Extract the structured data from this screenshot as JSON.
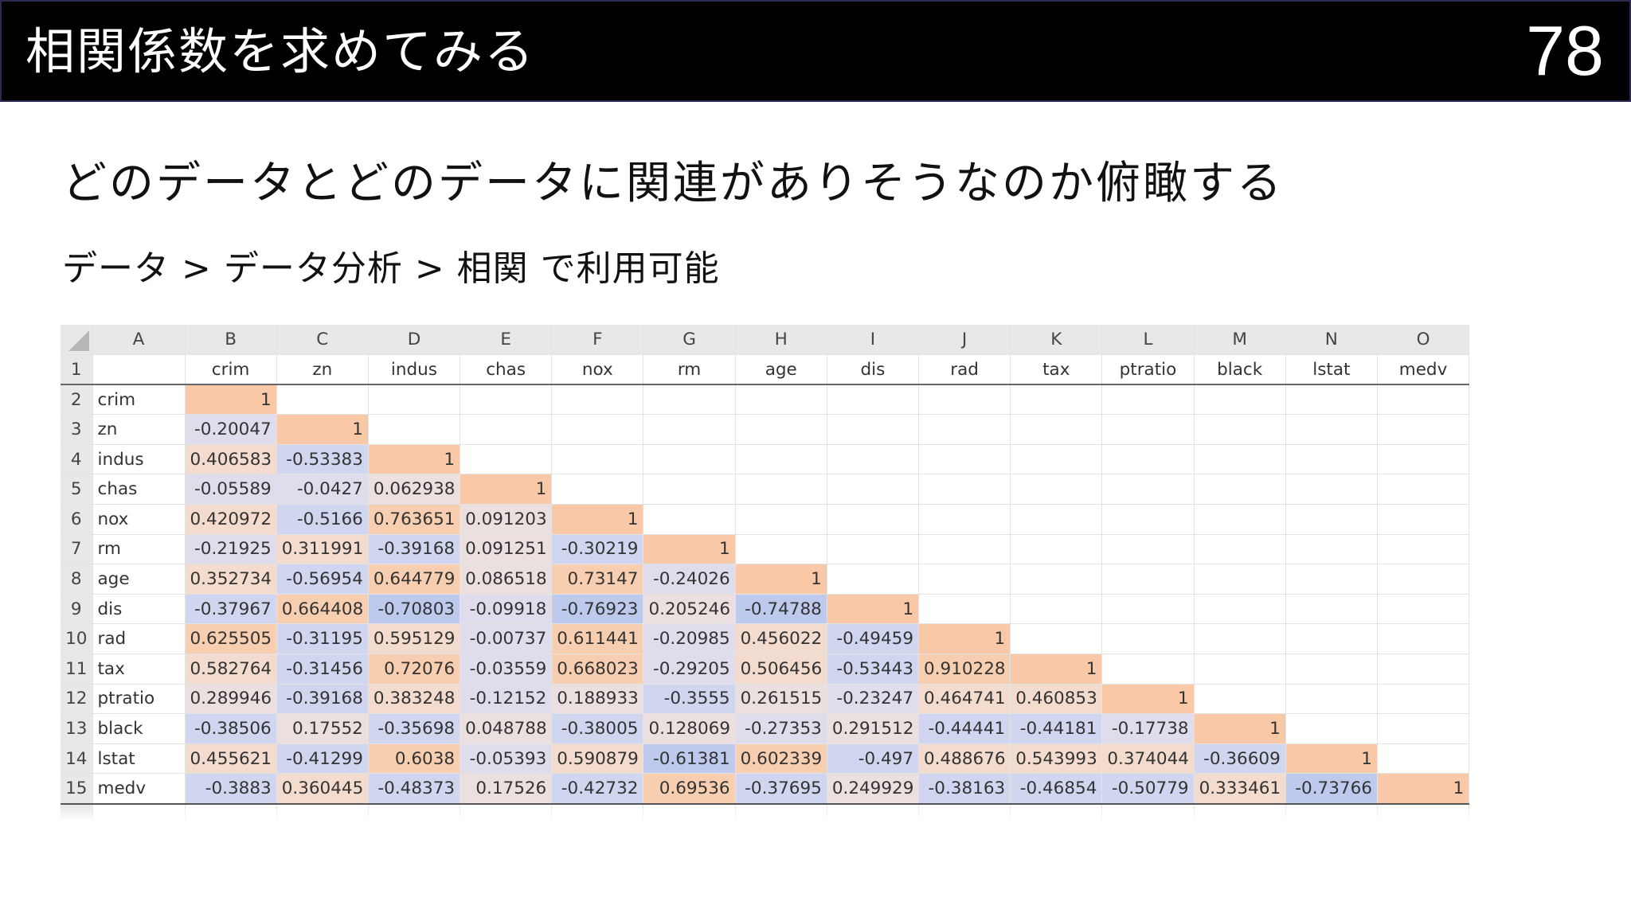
{
  "slide": {
    "title": "相関係数を求めてみる",
    "page_number": "78",
    "subtitle": "どのデータとどのデータに関連がありそうなのか俯瞰する",
    "menu_path": "データ > データ分析 > 相関 で利用可能"
  },
  "colors": {
    "title_bar": "#000000",
    "diagonal": "#f9c9a7",
    "strong_positive": "#f7cfb0",
    "positive": "#f3dccd",
    "weak_positive": "#ecdfe0",
    "weak_negative": "#dfdcec",
    "negative": "#d1d6f0",
    "strong_negative": "#bec9ee",
    "header_bg": "#e8e8e8"
  },
  "spreadsheet": {
    "columns": [
      "A",
      "B",
      "C",
      "D",
      "E",
      "F",
      "G",
      "H",
      "I",
      "J",
      "K",
      "L",
      "M",
      "N",
      "O"
    ],
    "variables": [
      "crim",
      "zn",
      "indus",
      "chas",
      "nox",
      "rm",
      "age",
      "dis",
      "rad",
      "tax",
      "ptratio",
      "black",
      "lstat",
      "medv"
    ],
    "rows": [
      [
        "1"
      ],
      [
        "-0.20047",
        "1"
      ],
      [
        "0.406583",
        "-0.53383",
        "1"
      ],
      [
        "-0.05589",
        "-0.0427",
        "0.062938",
        "1"
      ],
      [
        "0.420972",
        "-0.5166",
        "0.763651",
        "0.091203",
        "1"
      ],
      [
        "-0.21925",
        "0.311991",
        "-0.39168",
        "0.091251",
        "-0.30219",
        "1"
      ],
      [
        "0.352734",
        "-0.56954",
        "0.644779",
        "0.086518",
        "0.73147",
        "-0.24026",
        "1"
      ],
      [
        "-0.37967",
        "0.664408",
        "-0.70803",
        "-0.09918",
        "-0.76923",
        "0.205246",
        "-0.74788",
        "1"
      ],
      [
        "0.625505",
        "-0.31195",
        "0.595129",
        "-0.00737",
        "0.611441",
        "-0.20985",
        "0.456022",
        "-0.49459",
        "1"
      ],
      [
        "0.582764",
        "-0.31456",
        "0.72076",
        "-0.03559",
        "0.668023",
        "-0.29205",
        "0.506456",
        "-0.53443",
        "0.910228",
        "1"
      ],
      [
        "0.289946",
        "-0.39168",
        "0.383248",
        "-0.12152",
        "0.188933",
        "-0.3555",
        "0.261515",
        "-0.23247",
        "0.464741",
        "0.460853",
        "1"
      ],
      [
        "-0.38506",
        "0.17552",
        "-0.35698",
        "0.048788",
        "-0.38005",
        "0.128069",
        "-0.27353",
        "0.291512",
        "-0.44441",
        "-0.44181",
        "-0.17738",
        "1"
      ],
      [
        "0.455621",
        "-0.41299",
        "0.6038",
        "-0.05393",
        "0.590879",
        "-0.61381",
        "0.602339",
        "-0.497",
        "0.488676",
        "0.543993",
        "0.374044",
        "-0.36609",
        "1"
      ],
      [
        "-0.3883",
        "0.360445",
        "-0.48373",
        "0.17526",
        "-0.42732",
        "0.69536",
        "-0.37695",
        "0.249929",
        "-0.38163",
        "-0.46854",
        "-0.50779",
        "0.333461",
        "-0.73766",
        "1"
      ]
    ]
  }
}
